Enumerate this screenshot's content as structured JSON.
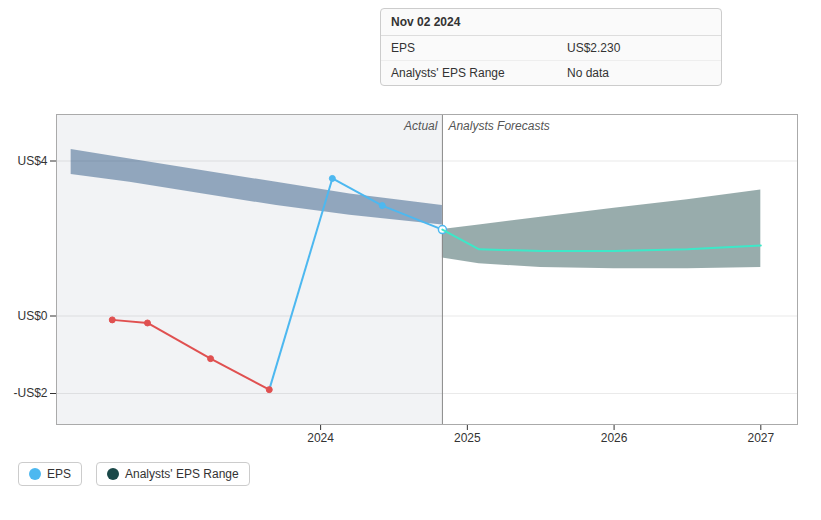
{
  "chart_data": {
    "type": "line",
    "xlim": [
      2022.2,
      2027.25
    ],
    "xticks": [
      2024,
      2025,
      2026,
      2027
    ],
    "ylim": [
      -2.8,
      5.2
    ],
    "yticks": [
      {
        "value": -2,
        "label": "-US$2"
      },
      {
        "value": 0,
        "label": "US$0"
      },
      {
        "value": 4,
        "label": "US$4"
      }
    ],
    "grid": true,
    "legend": "bottom",
    "divider_x": 2024.83,
    "annotations": [
      "Actual",
      "Analysts Forecasts"
    ],
    "tooltip": {
      "title": "Nov 02 2024",
      "rows": [
        {
          "label": "EPS",
          "value": "US$2.230"
        },
        {
          "label": "Analysts' EPS Range",
          "value": "No data"
        }
      ]
    },
    "series": [
      {
        "name": "EPS",
        "type": "line",
        "marker": "circle",
        "x": [
          2022.58,
          2022.82,
          2023.25,
          2023.65,
          2024.08,
          2024.42,
          2024.83
        ],
        "values": [
          -0.1,
          -0.18,
          -1.1,
          -1.9,
          3.55,
          2.85,
          2.23
        ],
        "color": "#4db8f0",
        "colors": [
          "#e05050",
          "#e05050",
          "#e05050",
          "#e05050",
          "#4db8f0",
          "#4db8f0",
          "#4db8f0"
        ]
      },
      {
        "type": "line",
        "x": [
          2024.83,
          2025.08,
          2025.5,
          2026.0,
          2026.5,
          2027.0
        ],
        "values": [
          2.23,
          1.72,
          1.68,
          1.68,
          1.72,
          1.82
        ],
        "color": "#3de8c8"
      },
      {
        "type": "area",
        "x": [
          2022.3,
          2022.7,
          2023.2,
          2023.7,
          2024.2,
          2024.83
        ],
        "upper": [
          4.3,
          4.05,
          3.75,
          3.45,
          3.15,
          2.85
        ],
        "lower": [
          3.65,
          3.45,
          3.15,
          2.85,
          2.6,
          2.35
        ],
        "color": "#1a4a7a"
      },
      {
        "name": "Analysts' EPS Range",
        "type": "area",
        "x": [
          2024.83,
          2025.08,
          2025.5,
          2026.0,
          2026.5,
          2027.0
        ],
        "upper": [
          2.23,
          2.35,
          2.55,
          2.78,
          3.0,
          3.25
        ],
        "lower": [
          1.5,
          1.35,
          1.25,
          1.22,
          1.22,
          1.25
        ],
        "color": "#1a4848"
      }
    ]
  }
}
